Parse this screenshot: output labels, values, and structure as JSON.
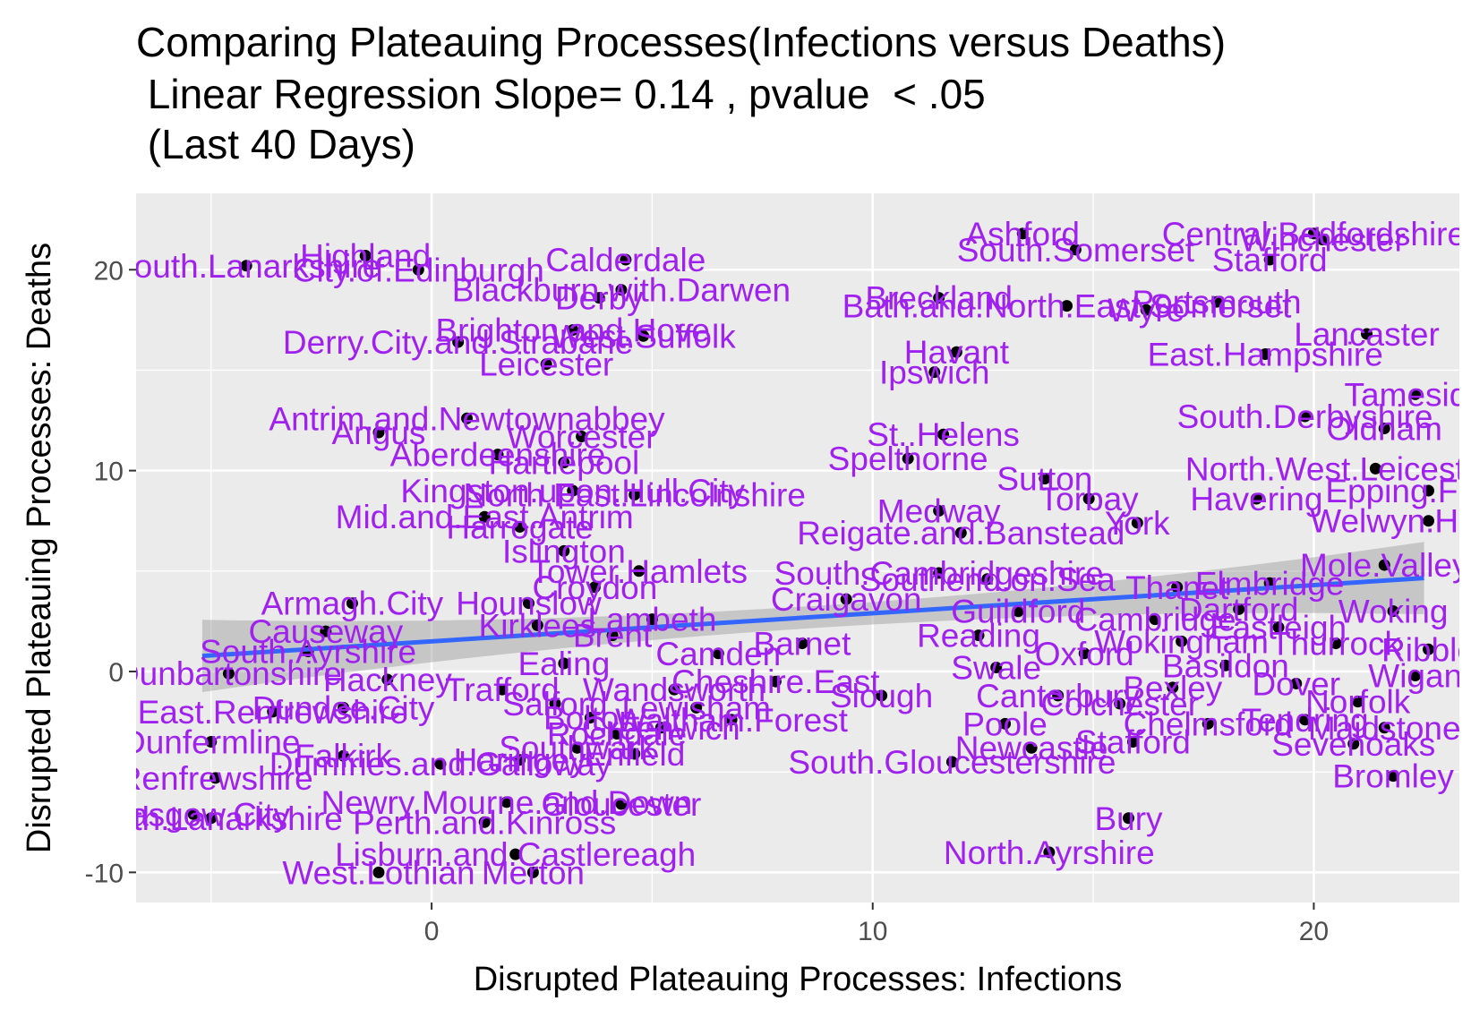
{
  "chart_data": {
    "type": "scatter",
    "title": "Comparing Plateauing Processes(Infections versus Deaths)",
    "subtitle": " Linear Regression Slope= 0.14 , pvalue  < .05",
    "subtitle2": " (Last 40 Days)",
    "xlabel": "Disrupted Plateauing Processes: Infections",
    "ylabel": "Disrupted Plateauing Processes: Deaths",
    "xlim": [
      -6.7,
      23.3
    ],
    "ylim": [
      -11.5,
      23.8
    ],
    "x_ticks": [
      0,
      10,
      20
    ],
    "y_ticks": [
      -10,
      0,
      10,
      20
    ],
    "x_tick_labels": [
      "0",
      "10",
      "20"
    ],
    "y_tick_labels": [
      "-10",
      "0",
      "10",
      "20"
    ],
    "grid": true,
    "regression": {
      "x0": -5.2,
      "x1": 22.5,
      "slope": 0.14,
      "intercept": 1.5
    },
    "colors": {
      "panel": "#ebebeb",
      "grid": "#ffffff",
      "point": "#000000",
      "label": "#a020f0",
      "line": "#3366ff",
      "band": "#999999"
    },
    "points": [
      {
        "label": "South.Lanarkshire",
        "x": -4.2,
        "y": 20.2
      },
      {
        "label": "Highland",
        "x": -1.5,
        "y": 20.7
      },
      {
        "label": "City.of.Edinburgh",
        "x": -0.3,
        "y": 20.0
      },
      {
        "label": "Blackburn.with.Darwen",
        "x": 4.3,
        "y": 19.0
      },
      {
        "label": "Calderdale",
        "x": 4.4,
        "y": 20.5
      },
      {
        "label": "Derby",
        "x": 3.8,
        "y": 18.6
      },
      {
        "label": "Derry.City.and.Strabane",
        "x": 0.6,
        "y": 16.4
      },
      {
        "label": "Brighton.and.Hove",
        "x": 3.2,
        "y": 17.0
      },
      {
        "label": "West.Suffolk",
        "x": 4.8,
        "y": 16.7
      },
      {
        "label": "Leicester",
        "x": 2.6,
        "y": 15.3
      },
      {
        "label": "Antrim.and.Newtownabbey",
        "x": 0.8,
        "y": 12.6
      },
      {
        "label": "Angus",
        "x": -1.2,
        "y": 11.9
      },
      {
        "label": "Worcester",
        "x": 3.4,
        "y": 11.7
      },
      {
        "label": "Aberdeenshire",
        "x": 1.5,
        "y": 10.8
      },
      {
        "label": "Hartlepool",
        "x": 3.0,
        "y": 10.4
      },
      {
        "label": "Kingston.upon.Hull.City",
        "x": 3.2,
        "y": 9.0
      },
      {
        "label": "North.East.Lincolnshire",
        "x": 4.6,
        "y": 8.8
      },
      {
        "label": "Mid.and.East.Antrim",
        "x": 1.2,
        "y": 7.7
      },
      {
        "label": "Harrogate",
        "x": 2.0,
        "y": 7.2
      },
      {
        "label": "Armagh.City",
        "x": -1.8,
        "y": 3.4
      },
      {
        "label": "Causeway",
        "x": -2.4,
        "y": 2.0
      },
      {
        "label": "South.Ayrshire",
        "x": -2.8,
        "y": 1.0
      },
      {
        "label": "Dunbartonshire",
        "x": -4.6,
        "y": -0.1
      },
      {
        "label": "Dundee.City",
        "x": -2.0,
        "y": -1.8
      },
      {
        "label": "East.Renfrewshire",
        "x": -3.6,
        "y": -2.0
      },
      {
        "label": "Dunfermline",
        "x": -5.0,
        "y": -3.5
      },
      {
        "label": "Falkirk",
        "x": -2.0,
        "y": -4.2
      },
      {
        "label": "Renfrewshire",
        "x": -4.9,
        "y": -5.3
      },
      {
        "label": "Dumfries.and.Galloway",
        "x": 0.2,
        "y": -4.6
      },
      {
        "label": "Glasgow.City",
        "x": -5.4,
        "y": -7.1
      },
      {
        "label": "North.Lanarkshire",
        "x": -5.0,
        "y": -7.3
      },
      {
        "label": "Newry.Mourne.and.Down",
        "x": 1.7,
        "y": -6.5
      },
      {
        "label": "Perth.and.Kinross",
        "x": 1.2,
        "y": -7.5
      },
      {
        "label": "Gloucester",
        "x": 4.3,
        "y": -6.6
      },
      {
        "label": "Lisburn.and.Castlereagh",
        "x": 1.9,
        "y": -9.1
      },
      {
        "label": "West.Lothian",
        "x": -1.2,
        "y": -10.0
      },
      {
        "label": "Merton",
        "x": 2.3,
        "y": -10.0
      },
      {
        "label": "Ashford",
        "x": 13.4,
        "y": 21.8
      },
      {
        "label": "South.Somerset",
        "x": 14.6,
        "y": 21.0
      },
      {
        "label": "Central.Bedfordshire",
        "x": 20.0,
        "y": 21.8
      },
      {
        "label": "Winchester",
        "x": 20.2,
        "y": 21.5
      },
      {
        "label": "Stafford",
        "x": 19.0,
        "y": 20.5
      },
      {
        "label": "Breckland",
        "x": 11.5,
        "y": 18.6
      },
      {
        "label": "Bath.and.North.East.Somerset",
        "x": 14.4,
        "y": 18.2
      },
      {
        "label": "Portsmouth",
        "x": 17.8,
        "y": 18.4
      },
      {
        "label": "Wyre",
        "x": 16.2,
        "y": 18.0
      },
      {
        "label": "Lancaster",
        "x": 21.2,
        "y": 16.8
      },
      {
        "label": "Havant",
        "x": 11.9,
        "y": 15.9
      },
      {
        "label": "East.Hampshire",
        "x": 18.9,
        "y": 15.8
      },
      {
        "label": "Ipswich",
        "x": 11.4,
        "y": 14.9
      },
      {
        "label": "Tameside",
        "x": 22.3,
        "y": 13.8
      },
      {
        "label": "South.Derbyshire",
        "x": 19.8,
        "y": 12.7
      },
      {
        "label": "Oldham",
        "x": 21.6,
        "y": 12.1
      },
      {
        "label": "St..Helens",
        "x": 11.6,
        "y": 11.8
      },
      {
        "label": "Spelthorne",
        "x": 10.8,
        "y": 10.6
      },
      {
        "label": "North.West.Leicestershire",
        "x": 21.4,
        "y": 10.1
      },
      {
        "label": "Sutton",
        "x": 13.9,
        "y": 9.6
      },
      {
        "label": "Torbay",
        "x": 14.9,
        "y": 8.6
      },
      {
        "label": "Havering",
        "x": 18.7,
        "y": 8.6
      },
      {
        "label": "Epping.Forest",
        "x": 22.6,
        "y": 9.0
      },
      {
        "label": "Medway",
        "x": 11.5,
        "y": 8.0
      },
      {
        "label": "Welwyn.Hatfield",
        "x": 22.6,
        "y": 7.5
      },
      {
        "label": "York",
        "x": 16.0,
        "y": 7.4
      },
      {
        "label": "Reigate.and.Banstead",
        "x": 12.0,
        "y": 6.9
      },
      {
        "label": "South.Cambridgeshire",
        "x": 11.5,
        "y": 4.9
      },
      {
        "label": "Southend.on.Sea",
        "x": 12.6,
        "y": 4.6
      },
      {
        "label": "Craigavon",
        "x": 9.4,
        "y": 3.6
      },
      {
        "label": "Islington",
        "x": 3.0,
        "y": 6.0
      },
      {
        "label": "Sevenoaks",
        "x": 20.9,
        "y": -3.6
      },
      {
        "label": "Bromley",
        "x": 21.8,
        "y": -5.2
      },
      {
        "label": "Bury",
        "x": 15.8,
        "y": -7.3
      },
      {
        "label": "North.Ayrshire",
        "x": 14.0,
        "y": -9.0
      },
      {
        "label": "South.Gloucestershire",
        "x": 11.8,
        "y": -4.5
      },
      {
        "label": "Newcastle",
        "x": 13.6,
        "y": -3.8
      },
      {
        "label": "Stafford",
        "x": 15.9,
        "y": -3.5
      },
      {
        "label": "Tendring",
        "x": 19.8,
        "y": -2.4
      },
      {
        "label": "Poole",
        "x": 13.0,
        "y": -2.6
      },
      {
        "label": "Cheshire.East",
        "x": 7.8,
        "y": -0.5
      },
      {
        "label": "Hackney",
        "x": -1.0,
        "y": -0.4
      },
      {
        "label": "Tower.Hamlets",
        "x": 4.7,
        "y": 5.0
      },
      {
        "label": "Wokingham",
        "x": 17.0,
        "y": 1.5
      },
      {
        "label": "Norfolk",
        "x": 21.0,
        "y": -1.5
      },
      {
        "label": "Wigan",
        "x": 22.3,
        "y": -0.2
      },
      {
        "label": "Bexley",
        "x": 16.8,
        "y": -0.8
      },
      {
        "label": "Dartford",
        "x": 18.3,
        "y": 3.1
      },
      {
        "label": "Eastleigh",
        "x": 19.2,
        "y": 2.2
      },
      {
        "label": "Ribble",
        "x": 22.6,
        "y": 1.1
      },
      {
        "label": "Barnet",
        "x": 8.4,
        "y": 1.4
      },
      {
        "label": "Camden",
        "x": 6.5,
        "y": 0.9
      },
      {
        "label": "Wandsworth",
        "x": 5.5,
        "y": -0.9
      },
      {
        "label": "Kirklees",
        "x": 2.4,
        "y": 2.3
      },
      {
        "label": "Bolton",
        "x": 3.6,
        "y": -2.3
      },
      {
        "label": "Rochdale",
        "x": 4.2,
        "y": -3.1
      },
      {
        "label": "Salford",
        "x": 2.8,
        "y": -1.6
      },
      {
        "label": "Trafford",
        "x": 1.6,
        "y": -0.9
      },
      {
        "label": "Ealing",
        "x": 3.0,
        "y": 0.4
      },
      {
        "label": "Brent",
        "x": 4.1,
        "y": 1.8
      },
      {
        "label": "Hounslow",
        "x": 2.2,
        "y": 3.4
      },
      {
        "label": "Lambeth",
        "x": 5.0,
        "y": 2.6
      },
      {
        "label": "Lewisham",
        "x": 6.0,
        "y": -1.8
      },
      {
        "label": "Greenwich",
        "x": 5.2,
        "y": -2.8
      },
      {
        "label": "Southwark",
        "x": 3.3,
        "y": -3.8
      },
      {
        "label": "Haringey",
        "x": 2.0,
        "y": -4.4
      },
      {
        "label": "Enfield",
        "x": 4.6,
        "y": -4.1
      },
      {
        "label": "Waltham.Forest",
        "x": 6.8,
        "y": -2.4
      },
      {
        "label": "Croydon",
        "x": 3.7,
        "y": 4.2
      },
      {
        "label": "Reading",
        "x": 12.4,
        "y": 1.8
      },
      {
        "label": "Slough",
        "x": 10.2,
        "y": -1.2
      },
      {
        "label": "Oxford",
        "x": 14.8,
        "y": 0.9
      },
      {
        "label": "Cambridge",
        "x": 16.4,
        "y": 2.6
      },
      {
        "label": "Colchester",
        "x": 15.6,
        "y": -1.6
      },
      {
        "label": "Basildon",
        "x": 18.0,
        "y": 0.3
      },
      {
        "label": "Thurrock",
        "x": 20.5,
        "y": 1.4
      },
      {
        "label": "Chelmsford",
        "x": 17.6,
        "y": -2.6
      },
      {
        "label": "Maidstone",
        "x": 21.6,
        "y": -2.8
      },
      {
        "label": "Canterbury",
        "x": 14.2,
        "y": -1.2
      },
      {
        "label": "Swale",
        "x": 12.8,
        "y": 0.2
      },
      {
        "label": "Dover",
        "x": 19.6,
        "y": -0.6
      },
      {
        "label": "Thanet",
        "x": 16.9,
        "y": 4.2
      },
      {
        "label": "Guildford",
        "x": 13.3,
        "y": 3.0
      },
      {
        "label": "Woking",
        "x": 21.8,
        "y": 3.0
      },
      {
        "label": "Elmbridge",
        "x": 19.0,
        "y": 4.4
      },
      {
        "label": "Mole.Valley",
        "x": 21.6,
        "y": 5.3
      }
    ]
  }
}
